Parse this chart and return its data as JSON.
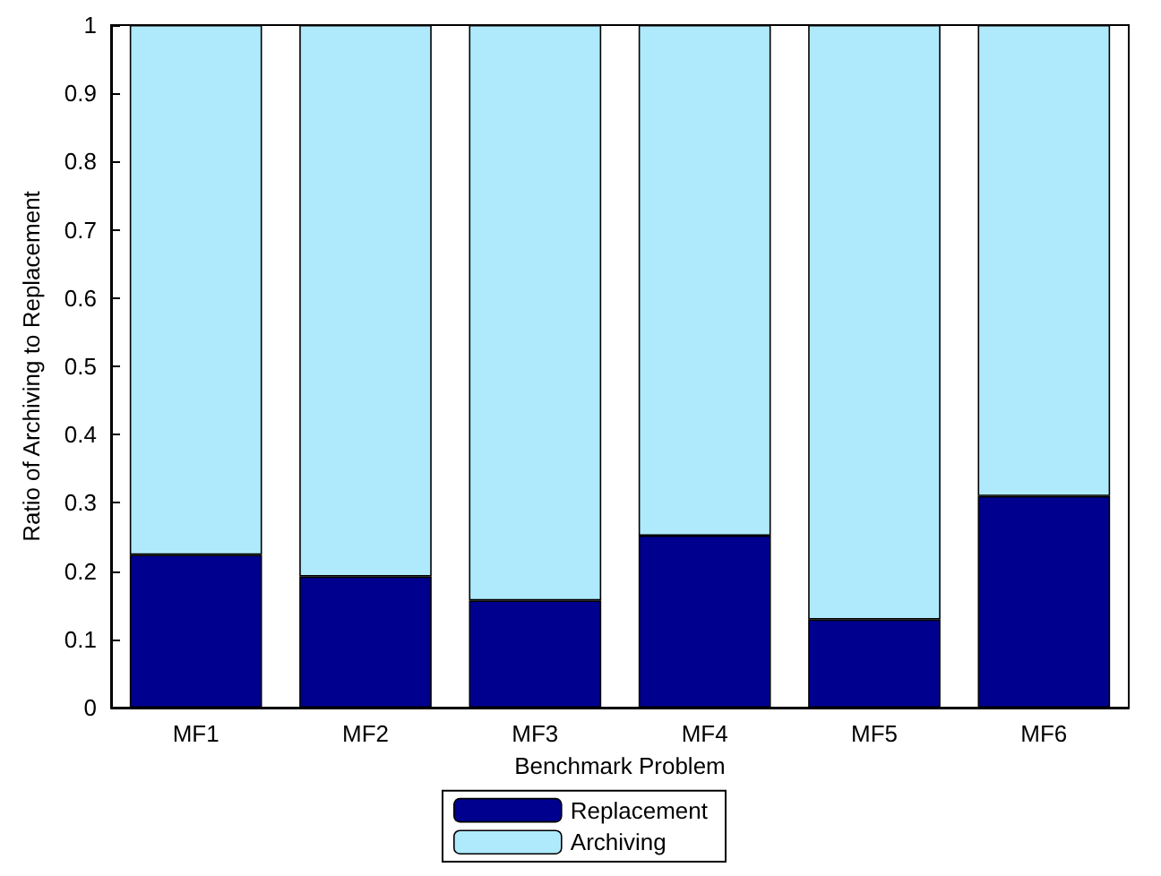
{
  "chart_data": {
    "type": "bar",
    "stacked": true,
    "xlabel": "Benchmark Problem",
    "ylabel": "Ratio of Archiving to Replacement",
    "categories": [
      "MF1",
      "MF2",
      "MF3",
      "MF4",
      "MF5",
      "MF6"
    ],
    "series": [
      {
        "name": "Replacement",
        "color": "#00008f",
        "values": [
          0.224,
          0.192,
          0.157,
          0.252,
          0.129,
          0.31
        ]
      },
      {
        "name": "Archiving",
        "color": "#aeeafc",
        "values": [
          0.776,
          0.808,
          0.843,
          0.748,
          0.871,
          0.69
        ]
      }
    ],
    "ylim": [
      0,
      1
    ],
    "yticks": [
      0,
      0.1,
      0.2,
      0.3,
      0.4,
      0.5,
      0.6,
      0.7,
      0.8,
      0.9,
      1
    ],
    "grid": false,
    "legend": "bottom"
  }
}
